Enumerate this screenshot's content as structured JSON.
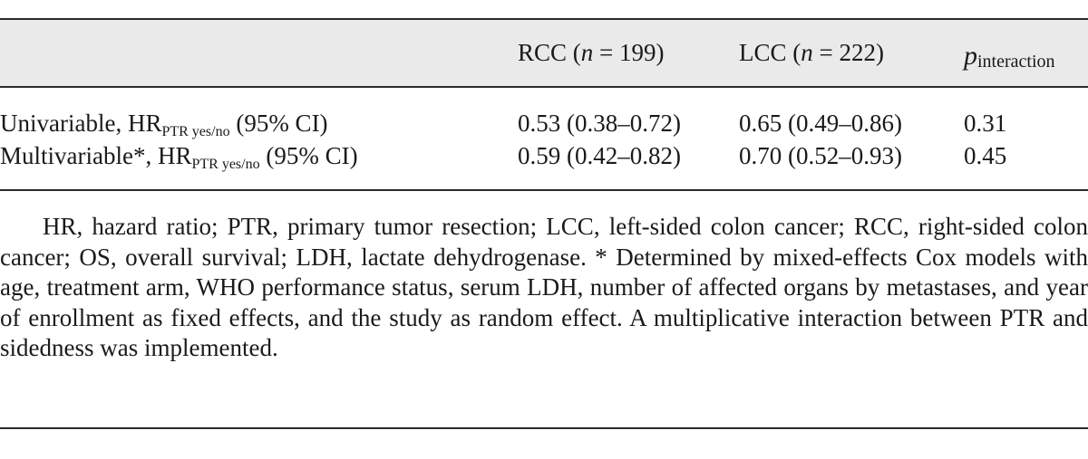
{
  "table": {
    "header": {
      "rcc_label": "RCC (",
      "rcc_n_var": "n",
      "rcc_n_value": " = 199)",
      "lcc_label": "LCC (",
      "lcc_n_var": "n",
      "lcc_n_value": " = 222)",
      "p_symbol": "p",
      "p_subscript": "interaction"
    },
    "rows": [
      {
        "label_prefix": "Univariable, HR",
        "label_subscript": "PTR yes/no",
        "label_suffix": " (95% CI)",
        "rcc": "0.53 (0.38–0.72)",
        "lcc": "0.65 (0.49–0.86)",
        "p_interaction": "0.31"
      },
      {
        "label_prefix": "Multivariable*, HR",
        "label_subscript": "PTR yes/no",
        "label_suffix": " (95% CI)",
        "rcc": "0.59 (0.42–0.82)",
        "lcc": "0.70 (0.52–0.93)",
        "p_interaction": "0.45"
      }
    ]
  },
  "footnote": "HR, hazard ratio; PTR, primary tumor resection; LCC, left-sided colon cancer; RCC, right-sided colon cancer; OS, overall survival; LDH, lactate dehydrogenase. * Determined by mixed-effects Cox models with age, treatment arm, WHO performance status, serum LDH, number of affected organs by metastases, and year of enrollment as fixed effects, and the study as random effect. A multiplicative interaction between PTR and sidedness was implemented."
}
